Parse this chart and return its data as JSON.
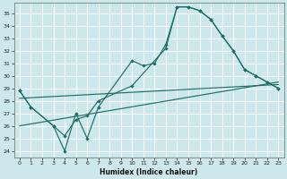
{
  "xlabel": "Humidex (Indice chaleur)",
  "bg_color": "#cde8ec",
  "grid_color": "#b0d4d8",
  "line_color": "#1e6e65",
  "xlim": [
    -0.5,
    23.5
  ],
  "ylim": [
    23.5,
    35.8
  ],
  "yticks": [
    24,
    25,
    26,
    27,
    28,
    29,
    30,
    31,
    32,
    33,
    34,
    35
  ],
  "xticks": [
    0,
    1,
    2,
    3,
    4,
    5,
    6,
    7,
    8,
    9,
    10,
    11,
    12,
    13,
    14,
    15,
    16,
    17,
    18,
    19,
    20,
    21,
    22,
    23
  ],
  "line1_x": [
    0,
    1,
    3,
    4,
    5,
    6,
    7,
    10,
    11,
    12,
    13,
    14,
    15,
    16,
    17,
    18,
    19,
    20,
    21,
    22,
    23
  ],
  "line1_y": [
    28.8,
    27.5,
    26.0,
    24.0,
    27.0,
    25.0,
    27.5,
    31.2,
    30.8,
    31.0,
    32.5,
    35.5,
    35.5,
    35.2,
    34.5,
    33.2,
    32.0,
    30.5,
    30.0,
    29.5,
    29.0
  ],
  "line2_x": [
    0,
    1,
    3,
    4,
    5,
    6,
    7,
    10,
    13,
    14,
    15,
    16,
    17,
    18,
    19,
    20,
    21,
    22,
    23
  ],
  "line2_y": [
    28.8,
    27.5,
    26.0,
    25.2,
    26.5,
    26.8,
    28.0,
    29.2,
    32.2,
    35.5,
    35.5,
    35.2,
    34.5,
    33.2,
    32.0,
    30.5,
    30.0,
    29.5,
    29.0
  ],
  "line3_x": [
    0,
    23
  ],
  "line3_y": [
    28.2,
    29.3
  ],
  "line4_x": [
    0,
    23
  ],
  "line4_y": [
    26.0,
    29.5
  ]
}
